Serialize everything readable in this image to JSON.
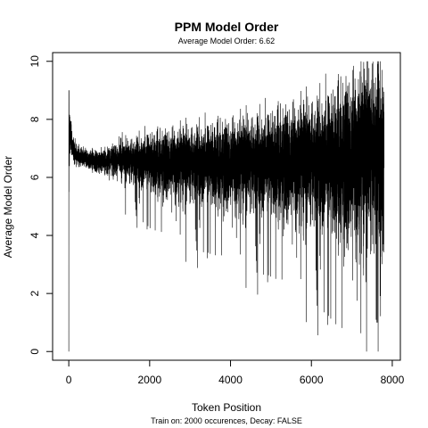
{
  "chart_data": {
    "type": "line",
    "title": "PPM Model Order",
    "subtitle": "Average Model Order: 6.62",
    "xlabel": "Token Position",
    "ylabel": "Average Model Order",
    "footnote": "Train on: 2000 occurences, Decay: FALSE",
    "xlim": [
      -400,
      8200
    ],
    "ylim": [
      -0.3,
      10.3
    ],
    "xticks": [
      0,
      2000,
      4000,
      6000,
      8000
    ],
    "yticks": [
      0,
      2,
      4,
      6,
      8,
      10
    ],
    "grid": false,
    "line_color": "#000000",
    "n_points": 7800,
    "trend": {
      "x": [
        0,
        20,
        60,
        120,
        250,
        500,
        800,
        1000,
        1500,
        2000,
        3000,
        4000,
        5000,
        6000,
        6500,
        7000,
        7500,
        7800
      ],
      "mean": [
        6.5,
        7.6,
        7.3,
        6.9,
        6.7,
        6.6,
        6.55,
        6.6,
        6.6,
        6.55,
        6.5,
        6.5,
        6.55,
        6.6,
        6.6,
        6.7,
        6.9,
        6.8
      ],
      "spread": [
        1.6,
        0.6,
        0.4,
        0.3,
        0.25,
        0.25,
        0.3,
        0.35,
        0.55,
        0.75,
        0.95,
        1.1,
        1.3,
        1.55,
        1.8,
        2.1,
        2.4,
        2.5
      ],
      "min_observed": 0,
      "max_observed": 10
    }
  }
}
